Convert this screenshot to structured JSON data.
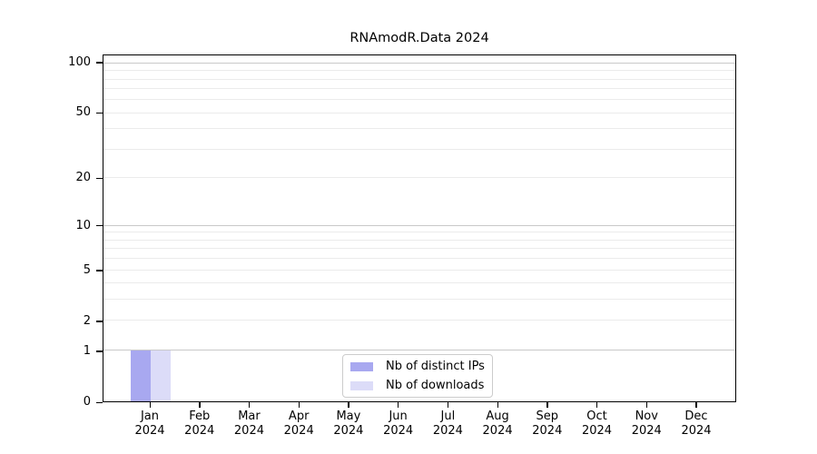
{
  "chart_data": {
    "type": "bar",
    "title": "RNAmodR.Data 2024",
    "categories": [
      "Jan",
      "Feb",
      "Mar",
      "Apr",
      "May",
      "Jun",
      "Jul",
      "Aug",
      "Sep",
      "Oct",
      "Nov",
      "Dec"
    ],
    "category_year": "2024",
    "series": [
      {
        "name": "Nb of distinct IPs",
        "color": "#a8a8f0",
        "values": [
          1,
          0,
          0,
          0,
          0,
          0,
          0,
          0,
          0,
          0,
          0,
          0
        ]
      },
      {
        "name": "Nb of downloads",
        "color": "#dcdcf8",
        "values": [
          1,
          0,
          0,
          0,
          0,
          0,
          0,
          0,
          0,
          0,
          0,
          0
        ]
      }
    ],
    "y_axis": {
      "scale": "log1p",
      "max": 111.6,
      "ticks": [
        0,
        1,
        2,
        5,
        10,
        20,
        50,
        100
      ],
      "major_gridlines": [
        1,
        10,
        100
      ],
      "minor_gridlines": [
        2,
        3,
        4,
        5,
        6,
        7,
        8,
        9,
        20,
        30,
        40,
        50,
        60,
        70,
        80,
        90
      ]
    },
    "xlabel": "",
    "ylabel": "",
    "grid": true,
    "legend_position": "lower center",
    "colors": {
      "major_grid": "#c9c9c9",
      "minor_grid": "#ebebeb",
      "axis": "#000000",
      "background": "#ffffff"
    }
  }
}
